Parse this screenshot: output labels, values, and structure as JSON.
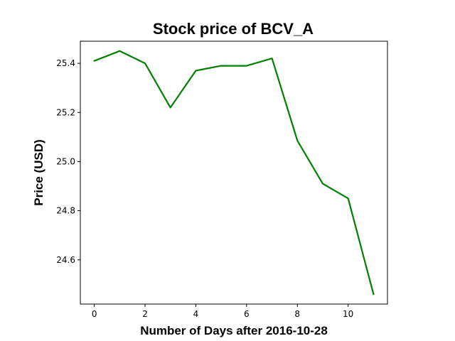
{
  "chart_data": {
    "type": "line",
    "title": "Stock price of BCV_A",
    "xlabel": "Number of Days after 2016-10-28",
    "ylabel": "Price (USD)",
    "xlim": [
      -0.55,
      11.55
    ],
    "ylim": [
      24.42,
      25.49
    ],
    "xticks": [
      0,
      2,
      4,
      6,
      8,
      10
    ],
    "yticks": [
      24.6,
      24.8,
      25.0,
      25.2,
      25.4
    ],
    "grid": false,
    "series": [
      {
        "color": "#008000",
        "x": [
          0,
          1,
          2,
          3,
          4,
          5,
          6,
          7,
          8,
          9,
          10,
          11
        ],
        "y": [
          25.41,
          25.45,
          25.4,
          25.22,
          25.37,
          25.39,
          25.39,
          25.42,
          25.085,
          24.91,
          24.85,
          24.46
        ]
      }
    ]
  }
}
